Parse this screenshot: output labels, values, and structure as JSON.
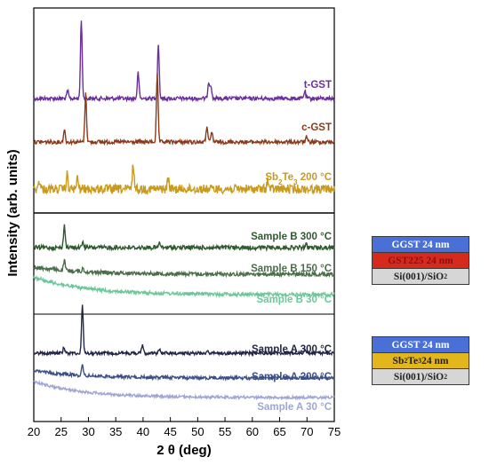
{
  "chart_data": {
    "type": "line",
    "xlabel": "2 θ (deg)",
    "ylabel": "Intensity (arb. units)",
    "xlim": [
      20,
      75
    ],
    "xticks": [
      20,
      25,
      30,
      35,
      40,
      45,
      50,
      55,
      60,
      65,
      70,
      75
    ],
    "grid": false,
    "panels": [
      {
        "name": "reference",
        "series": [
          {
            "name": "t-GST",
            "color": "#6a2f9c",
            "peaks": [
              [
                26.2,
                0.05
              ],
              [
                28.7,
                0.52
              ],
              [
                39.1,
                0.17
              ],
              [
                42.8,
                0.36
              ],
              [
                52.0,
                0.11
              ],
              [
                52.4,
                0.09
              ],
              [
                69.6,
                0.05
              ]
            ]
          },
          {
            "name": "c-GST",
            "color": "#8b3a1a",
            "peaks": [
              [
                25.6,
                0.08
              ],
              [
                29.5,
                0.3
              ],
              [
                42.6,
                0.42
              ],
              [
                51.7,
                0.1
              ],
              [
                52.6,
                0.06
              ],
              [
                69.9,
                0.03
              ]
            ]
          },
          {
            "name": "Sb2Te3 200 °C",
            "color": "#c99a1c",
            "peaks": [
              [
                21.0,
                0.05
              ],
              [
                26.1,
                0.08
              ],
              [
                28.0,
                0.06
              ],
              [
                38.2,
                0.14
              ],
              [
                44.6,
                0.06
              ],
              [
                62.8,
                0.05
              ]
            ]
          }
        ]
      },
      {
        "name": "sample-b",
        "series": [
          {
            "name": "Sample B 300 °C",
            "color": "#2f5a2f",
            "peaks": [
              [
                25.6,
                0.14
              ],
              [
                29.0,
                0.04
              ],
              [
                43.0,
                0.03
              ],
              [
                69.8,
                0.02
              ]
            ]
          },
          {
            "name": "Sample B 150 °C",
            "color": "#4a6e4a",
            "peaks": [
              [
                25.6,
                0.06
              ],
              [
                29.0,
                0.02
              ]
            ]
          },
          {
            "name": "Sample B 30 °C",
            "color": "#6ec79a",
            "peaks": []
          }
        ]
      },
      {
        "name": "sample-a",
        "series": [
          {
            "name": "Sample A 300 °C",
            "color": "#232645",
            "peaks": [
              [
                25.5,
                0.04
              ],
              [
                28.9,
                0.3
              ],
              [
                39.9,
                0.05
              ],
              [
                43.0,
                0.03
              ],
              [
                51.8,
                0.02
              ],
              [
                69.6,
                0.02
              ]
            ]
          },
          {
            "name": "Sample A 200 °C",
            "color": "#3c4f86",
            "peaks": [
              [
                28.9,
                0.06
              ]
            ]
          },
          {
            "name": "Sample A 30 °C",
            "color": "#9fa6d1",
            "peaks": []
          }
        ]
      }
    ]
  },
  "stack_b": [
    {
      "text": "GGST 24 nm",
      "bg": "#4a6fd6",
      "fg": "#ffffff",
      "border": "#3a3a3a"
    },
    {
      "text": "GST225 24 nm",
      "bg": "#d62a1c",
      "fg": "#8a1010",
      "border": "#3a3a3a"
    },
    {
      "main": "Si(001)/SiO",
      "sub": "2",
      "bg": "#d6d6d6",
      "fg": "#222222",
      "border": "#3a3a3a"
    }
  ],
  "stack_a": [
    {
      "text": "GGST 24 nm",
      "bg": "#4a6fd6",
      "fg": "#ffffff",
      "border": "#3a3a3a"
    },
    {
      "main": "Sb",
      "sub1": "2",
      "mid": "Te",
      "sub2": "3",
      "tail": " 24 nm",
      "bg": "#e3b61c",
      "fg": "#222222",
      "border": "#3a3a3a"
    },
    {
      "main": "Si(001)/SiO",
      "sub": "2",
      "bg": "#d6d6d6",
      "fg": "#222222",
      "border": "#3a3a3a"
    }
  ]
}
